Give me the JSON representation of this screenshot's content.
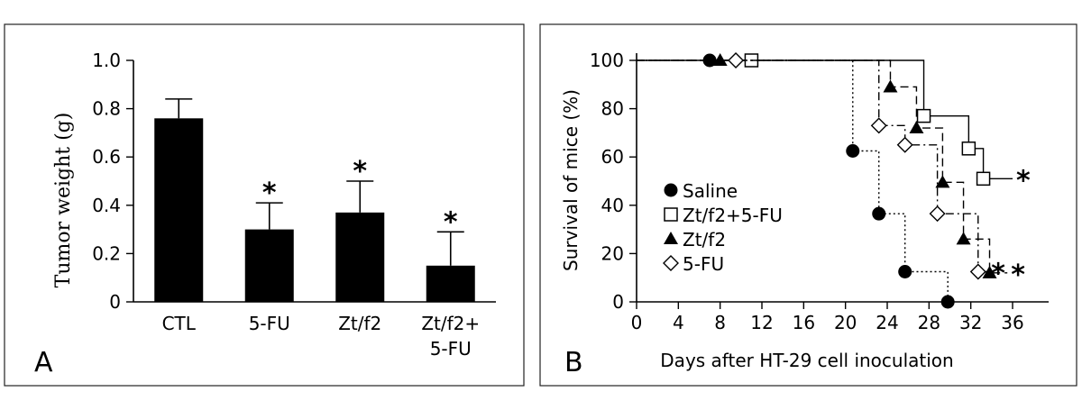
{
  "panels": {
    "a_letter": "A",
    "b_letter": "B"
  },
  "chart_data": [
    {
      "type": "bar",
      "ylabel": "Tumor weight (g)",
      "xlabel": "",
      "categories": [
        "CTL",
        "5-FU",
        "Zt/f2",
        "Zt/f2+\n5-FU"
      ],
      "category_lines": [
        [
          "CTL"
        ],
        [
          "5-FU"
        ],
        [
          "Zt/f2"
        ],
        [
          "Zt/f2+",
          "5-FU"
        ]
      ],
      "values": [
        0.76,
        0.3,
        0.37,
        0.15
      ],
      "errors": [
        0.08,
        0.11,
        0.13,
        0.14
      ],
      "significance": [
        "",
        "*",
        "*",
        "*"
      ],
      "ylim": [
        0,
        1.0
      ],
      "yticks": [
        "0",
        "0.2",
        "0.4",
        "0.6",
        "0.8",
        "1.0"
      ],
      "bar_color": "#000000"
    },
    {
      "type": "line",
      "step": true,
      "xlabel": "Days after HT-29 cell inoculation",
      "ylabel": "Survival of mice (%)",
      "xlim": [
        0,
        38
      ],
      "ylim": [
        0,
        100
      ],
      "xticks": [
        0,
        4,
        8,
        12,
        16,
        20,
        24,
        28,
        32,
        36
      ],
      "yticks": [
        0,
        20,
        40,
        60,
        80,
        100
      ],
      "series": [
        {
          "name": "Saline",
          "marker": "circle-filled",
          "dash": "dotted",
          "color": "#000000",
          "legend_marker_day": 7,
          "points": [
            [
              0,
              100
            ],
            [
              20.7,
              100
            ],
            [
              20.7,
              62.5
            ],
            [
              23.2,
              62.5
            ],
            [
              23.2,
              36.5
            ],
            [
              25.7,
              36.5
            ],
            [
              25.7,
              12.5
            ],
            [
              29.8,
              12.5
            ],
            [
              29.8,
              0
            ]
          ],
          "markers": [
            [
              20.7,
              62.5
            ],
            [
              23.2,
              36.5
            ],
            [
              25.7,
              12.5
            ],
            [
              29.8,
              0
            ]
          ],
          "significance": ""
        },
        {
          "name": "Zt/f2+5-FU",
          "marker": "square-open",
          "dash": "solid",
          "color": "#000000",
          "legend_marker_day": 11,
          "points": [
            [
              0,
              100
            ],
            [
              27.5,
              100
            ],
            [
              27.5,
              77
            ],
            [
              31.8,
              77
            ],
            [
              31.8,
              63.5
            ],
            [
              33.2,
              63.5
            ],
            [
              33.2,
              51
            ],
            [
              36,
              51
            ]
          ],
          "markers": [
            [
              27.5,
              77
            ],
            [
              31.8,
              63.5
            ],
            [
              33.2,
              51
            ]
          ],
          "significance": "*"
        },
        {
          "name": "Zt/f2",
          "marker": "triangle-filled",
          "dash": "dashed",
          "color": "#000000",
          "legend_marker_day": 8,
          "points": [
            [
              0,
              100
            ],
            [
              24.3,
              100
            ],
            [
              24.3,
              89
            ],
            [
              26.8,
              89
            ],
            [
              26.8,
              72
            ],
            [
              29.3,
              72
            ],
            [
              29.3,
              49.5
            ],
            [
              31.3,
              49.5
            ],
            [
              31.3,
              26
            ],
            [
              33.8,
              26
            ],
            [
              33.8,
              12
            ],
            [
              35.5,
              12
            ]
          ],
          "markers": [
            [
              24.3,
              89
            ],
            [
              26.8,
              72
            ],
            [
              29.3,
              49.5
            ],
            [
              31.3,
              26
            ],
            [
              33.8,
              12
            ]
          ],
          "significance": "*"
        },
        {
          "name": "5-FU",
          "marker": "diamond-open",
          "dash": "dashdot",
          "color": "#000000",
          "legend_marker_day": 9.5,
          "points": [
            [
              0,
              100
            ],
            [
              23.2,
              100
            ],
            [
              23.2,
              73
            ],
            [
              25.7,
              73
            ],
            [
              25.7,
              65
            ],
            [
              28.8,
              65
            ],
            [
              28.8,
              36.5
            ],
            [
              32.7,
              36.5
            ],
            [
              32.7,
              12.5
            ],
            [
              33.6,
              12.5
            ]
          ],
          "markers": [
            [
              23.2,
              73
            ],
            [
              25.7,
              65
            ],
            [
              28.8,
              36.5
            ],
            [
              32.7,
              12.5
            ]
          ],
          "significance": "*"
        }
      ],
      "legend_order": [
        "Saline",
        "Zt/f2+5-FU",
        "Zt/f2",
        "5-FU"
      ],
      "legend_position": "center-left"
    }
  ]
}
